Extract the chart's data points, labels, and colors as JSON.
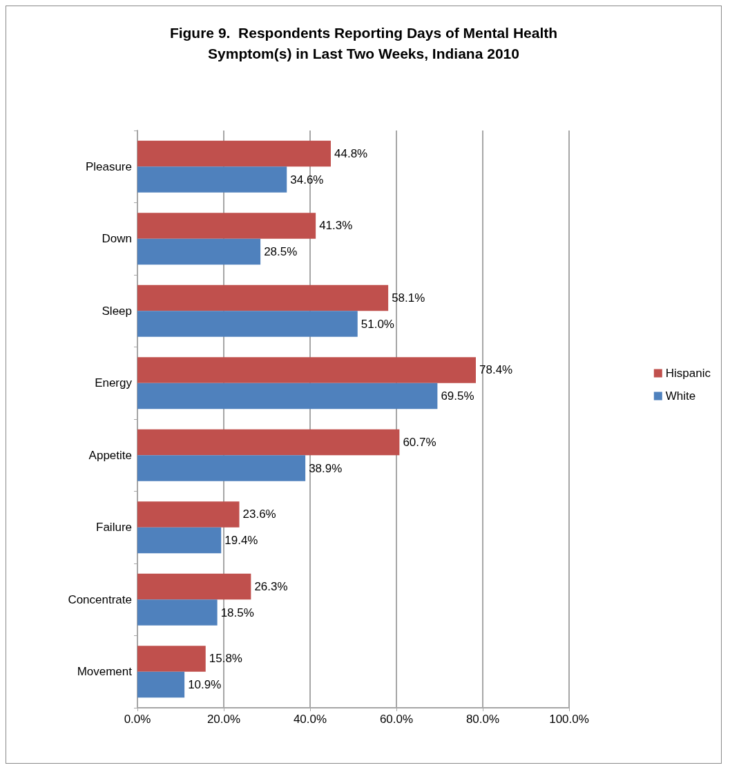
{
  "chart_data": {
    "type": "bar",
    "orientation": "horizontal",
    "title": "Figure 9.  Respondents Reporting Days of Mental Health\nSymptom(s) in Last Two Weeks, Indiana 2010",
    "categories": [
      "Pleasure",
      "Down",
      "Sleep",
      "Energy",
      "Appetite",
      "Failure",
      "Concentrate",
      "Movement"
    ],
    "series": [
      {
        "name": "Hispanic",
        "color": "#c0504d",
        "values": [
          44.8,
          41.3,
          58.1,
          78.4,
          60.7,
          23.6,
          26.3,
          15.8
        ],
        "value_labels": [
          "44.8%",
          "41.3%",
          "58.1%",
          "78.4%",
          "60.7%",
          "23.6%",
          "26.3%",
          "15.8%"
        ]
      },
      {
        "name": "White",
        "color": "#4f81bd",
        "values": [
          34.6,
          28.5,
          51.0,
          69.5,
          38.9,
          19.4,
          18.5,
          10.9
        ],
        "value_labels": [
          "34.6%",
          "28.5%",
          "51.0%",
          "69.5%",
          "38.9%",
          "19.4%",
          "18.5%",
          "10.9%"
        ]
      }
    ],
    "xlim": [
      0,
      100
    ],
    "xticks": [
      {
        "value": 0,
        "label": "0.0%"
      },
      {
        "value": 20,
        "label": "20.0%"
      },
      {
        "value": 40,
        "label": "40.0%"
      },
      {
        "value": 60,
        "label": "60.0%"
      },
      {
        "value": 80,
        "label": "80.0%"
      },
      {
        "value": 100,
        "label": "100.0%"
      }
    ],
    "grid": "x",
    "legend": "right"
  }
}
